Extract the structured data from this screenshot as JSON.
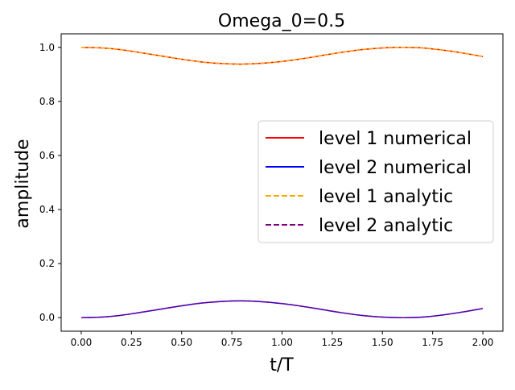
{
  "chart_data": {
    "type": "line",
    "title": "Omega_0=0.5",
    "xlabel": "t/T",
    "ylabel": "amplitude",
    "xlim": [
      -0.1,
      2.1
    ],
    "ylim": [
      -0.05,
      1.05
    ],
    "xticks": [
      "0.00",
      "0.25",
      "0.50",
      "0.75",
      "1.00",
      "1.25",
      "1.50",
      "1.75",
      "2.00"
    ],
    "yticks": [
      "0.0",
      "0.2",
      "0.4",
      "0.6",
      "0.8",
      "1.0"
    ],
    "grid": false,
    "legend_position": "center-right",
    "x": [
      0.0,
      0.1,
      0.2,
      0.3,
      0.4,
      0.5,
      0.6,
      0.7,
      0.8,
      0.9,
      1.0,
      1.1,
      1.2,
      1.3,
      1.4,
      1.5,
      1.6,
      1.7,
      1.8,
      1.9,
      2.0
    ],
    "series": [
      {
        "name": "level 1 numerical",
        "color": "#ff0000",
        "dash": "solid",
        "values": [
          1.0,
          0.998,
          0.991,
          0.98,
          0.968,
          0.956,
          0.946,
          0.94,
          0.938,
          0.941,
          0.948,
          0.958,
          0.97,
          0.982,
          0.992,
          0.998,
          1.0,
          0.998,
          0.99,
          0.979,
          0.966
        ]
      },
      {
        "name": "level 2 numerical",
        "color": "#0000ff",
        "dash": "solid",
        "values": [
          0.0,
          0.002,
          0.009,
          0.02,
          0.032,
          0.044,
          0.054,
          0.06,
          0.062,
          0.059,
          0.052,
          0.042,
          0.03,
          0.018,
          0.008,
          0.002,
          0.0,
          0.002,
          0.01,
          0.021,
          0.034
        ]
      },
      {
        "name": "level 1 analytic",
        "color": "#ffa500",
        "dash": "dashed",
        "values": [
          1.0,
          0.998,
          0.991,
          0.98,
          0.968,
          0.956,
          0.946,
          0.94,
          0.938,
          0.941,
          0.948,
          0.958,
          0.97,
          0.982,
          0.992,
          0.998,
          1.0,
          0.998,
          0.99,
          0.979,
          0.966
        ]
      },
      {
        "name": "level 2 analytic",
        "color": "#800080",
        "dash": "dashed",
        "values": [
          0.0,
          0.002,
          0.009,
          0.02,
          0.032,
          0.044,
          0.054,
          0.06,
          0.062,
          0.059,
          0.052,
          0.042,
          0.03,
          0.018,
          0.008,
          0.002,
          0.0,
          0.002,
          0.01,
          0.021,
          0.034
        ]
      }
    ]
  }
}
